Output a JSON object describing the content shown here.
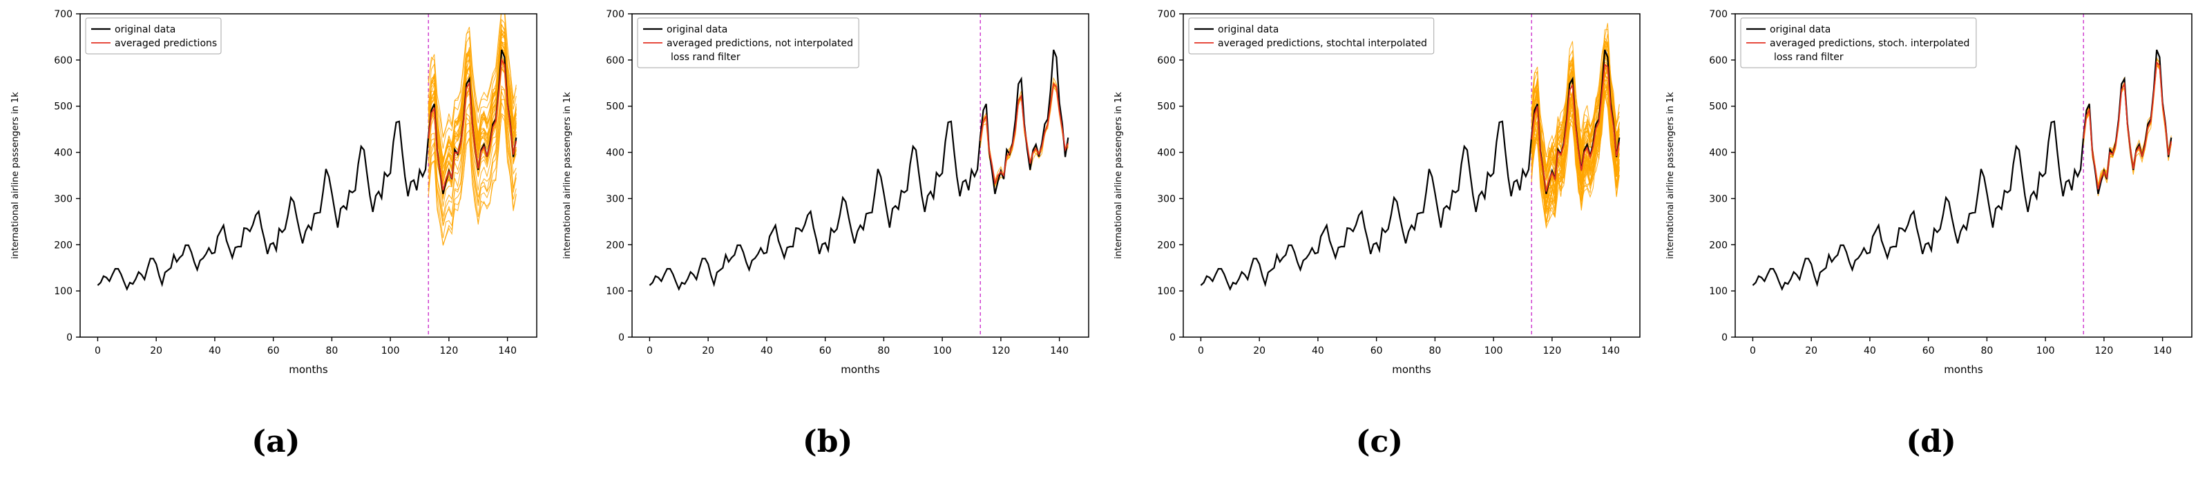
{
  "chart_data": {
    "type": "line",
    "xlabel": "months",
    "ylabel": "international airline passengers in 1k",
    "xlim": [
      -6,
      150
    ],
    "ylim": [
      0,
      700
    ],
    "xticks": [
      0,
      20,
      40,
      60,
      80,
      100,
      120,
      140
    ],
    "yticks": [
      0,
      100,
      200,
      300,
      400,
      500,
      600,
      700
    ],
    "forecast_split_x": 113,
    "split_line_color": "#cc33cc",
    "ensemble_color": "#ffa500",
    "prediction_color": "#e33122",
    "original": {
      "name": "original data",
      "color": "#000000",
      "x_start": 0,
      "values": [
        112,
        118,
        132,
        129,
        121,
        135,
        148,
        148,
        136,
        119,
        104,
        118,
        115,
        126,
        141,
        135,
        125,
        149,
        170,
        170,
        158,
        133,
        114,
        140,
        145,
        150,
        178,
        163,
        172,
        178,
        199,
        199,
        184,
        162,
        146,
        166,
        171,
        180,
        193,
        181,
        183,
        218,
        230,
        242,
        209,
        191,
        172,
        194,
        196,
        196,
        236,
        235,
        229,
        243,
        264,
        272,
        237,
        211,
        180,
        201,
        204,
        188,
        235,
        227,
        234,
        264,
        302,
        293,
        259,
        229,
        203,
        229,
        242,
        233,
        267,
        269,
        270,
        315,
        364,
        347,
        312,
        274,
        237,
        278,
        284,
        277,
        317,
        313,
        318,
        374,
        413,
        405,
        355,
        306,
        271,
        306,
        315,
        301,
        356,
        348,
        355,
        422,
        465,
        467,
        404,
        347,
        305,
        336,
        340,
        318,
        362,
        348,
        363,
        435,
        491,
        505,
        404,
        359,
        310,
        337,
        360,
        342,
        406,
        396,
        420,
        472,
        548,
        559,
        463,
        407,
        362,
        405,
        417,
        391,
        419,
        461,
        472,
        535,
        622,
        606,
        508,
        461,
        390,
        432
      ]
    },
    "panels": [
      {
        "label": "(a)",
        "legend": [
          {
            "text": "original data",
            "color": "#000000"
          },
          {
            "text": "averaged predictions",
            "color": "#e33122"
          }
        ],
        "prediction": {
          "name": "averaged predictions",
          "x_start": 113,
          "values": [
            430,
            485,
            495,
            400,
            362,
            318,
            342,
            358,
            345,
            400,
            398,
            418,
            468,
            540,
            550,
            460,
            408,
            365,
            402,
            412,
            393,
            415,
            455,
            468,
            528,
            600,
            590,
            505,
            458,
            395,
            425
          ]
        },
        "ensemble": {
          "count": 38,
          "offset_spread": 120,
          "jitter": 10,
          "seed": 7
        }
      },
      {
        "label": "(b)",
        "legend": [
          {
            "text": "original data",
            "color": "#000000"
          },
          {
            "text": "averaged predictions, not interpolated",
            "text2": "loss rand filter",
            "color": "#e33122"
          }
        ],
        "prediction": {
          "name": "averaged predictions, not interpolated loss rand filter",
          "x_start": 113,
          "values": [
            425,
            468,
            478,
            405,
            372,
            332,
            350,
            358,
            350,
            392,
            398,
            415,
            452,
            512,
            522,
            455,
            415,
            376,
            400,
            408,
            396,
            412,
            444,
            460,
            505,
            548,
            542,
            490,
            450,
            406,
            420
          ]
        },
        "ensemble": {
          "count": 10,
          "offset_spread": 14,
          "jitter": 6,
          "seed": 11
        }
      },
      {
        "label": "(c)",
        "legend": [
          {
            "text": "original data",
            "color": "#000000"
          },
          {
            "text": "averaged predictions, stochtal interpolated",
            "color": "#e33122"
          }
        ],
        "prediction": {
          "name": "averaged predictions, stochtal interpolated",
          "x_start": 113,
          "values": [
            428,
            482,
            500,
            398,
            360,
            315,
            340,
            356,
            342,
            402,
            395,
            416,
            465,
            535,
            545,
            458,
            405,
            360,
            400,
            410,
            390,
            412,
            452,
            465,
            525,
            590,
            585,
            500,
            455,
            392,
            422
          ]
        },
        "ensemble": {
          "count": 48,
          "offset_spread": 75,
          "jitter": 22,
          "seed": 3
        }
      },
      {
        "label": "(d)",
        "legend": [
          {
            "text": "original data",
            "color": "#000000"
          },
          {
            "text": "averaged predictions, stoch. interpolated",
            "text2": "loss rand filter",
            "color": "#e33122"
          }
        ],
        "prediction": {
          "name": "averaged predictions, stoch. interpolated loss rand filter",
          "x_start": 113,
          "values": [
            430,
            480,
            492,
            402,
            365,
            320,
            344,
            358,
            346,
            400,
            396,
            416,
            465,
            535,
            548,
            460,
            408,
            364,
            402,
            412,
            392,
            414,
            454,
            467,
            528,
            595,
            588,
            503,
            457,
            394,
            424
          ]
        },
        "ensemble": {
          "count": 10,
          "offset_spread": 12,
          "jitter": 5,
          "seed": 5
        }
      }
    ]
  }
}
